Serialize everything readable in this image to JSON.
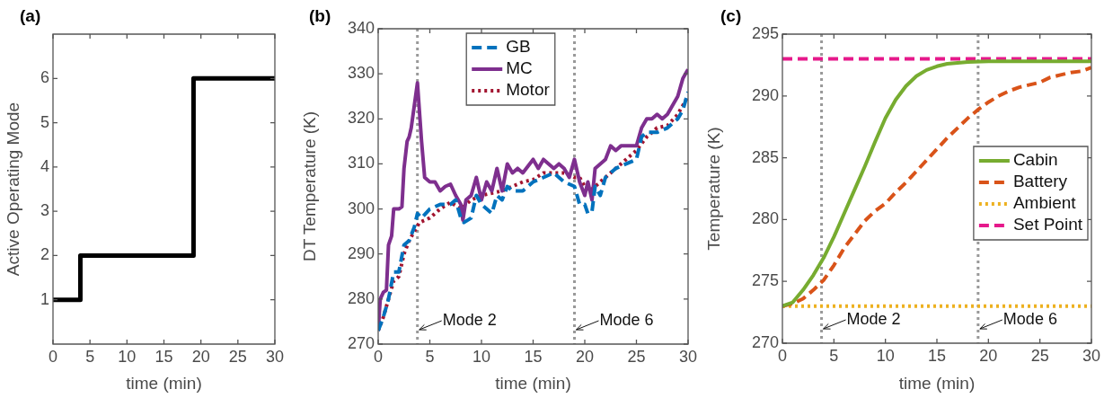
{
  "chart_data": [
    {
      "type": "step",
      "title": "(a)",
      "xlabel": "time (min)",
      "ylabel": "Active Operating Mode",
      "x": [
        0,
        3.7,
        19,
        30
      ],
      "series": [
        {
          "color": "#000000",
          "values": [
            1,
            2,
            6,
            6
          ]
        }
      ],
      "xlim": [
        0,
        30
      ],
      "xticks": [
        0,
        5,
        10,
        15,
        20,
        25,
        30
      ],
      "ylim": [
        0,
        7
      ],
      "yticks": [
        1,
        2,
        3,
        4,
        5,
        6
      ],
      "legend": false,
      "grid": false
    },
    {
      "type": "line",
      "title": "(b)",
      "xlabel": "time (min)",
      "ylabel": "DT Temperature (K)",
      "series": [
        {
          "name": "GB",
          "color": "#0072bd",
          "line_style": "dashed",
          "x": [
            0,
            0.5,
            1,
            1.5,
            2,
            2.5,
            3,
            3.5,
            3.8,
            4.2,
            5,
            6,
            7,
            7.5,
            8,
            8.3,
            9,
            9.5,
            10,
            10.5,
            11,
            11.5,
            12,
            12.5,
            13,
            14,
            15,
            16,
            17,
            17.5,
            18,
            19,
            19.5,
            20,
            20.3,
            20.7,
            21,
            21.5,
            22,
            23,
            24,
            25,
            25.5,
            26,
            27,
            28,
            29,
            29.5,
            30
          ],
          "values": [
            273,
            276,
            280,
            286,
            286,
            292,
            293,
            296,
            299,
            298,
            300,
            301,
            301,
            302,
            298,
            297,
            298,
            303,
            301,
            300,
            299,
            303,
            302,
            305,
            304,
            304,
            306,
            307,
            308,
            307,
            306,
            305,
            301,
            301,
            299,
            299.5,
            305,
            303,
            307,
            309,
            310,
            311,
            316,
            317,
            317,
            318,
            320,
            322,
            326
          ]
        },
        {
          "name": "MC",
          "color": "#7e2f8e",
          "line_style": "solid",
          "x": [
            0,
            0.2,
            0.5,
            0.8,
            1,
            1.3,
            1.5,
            2,
            2.3,
            2.5,
            2.8,
            3,
            3.2,
            3.5,
            3.8,
            4.2,
            4.5,
            5,
            5.5,
            6,
            6.5,
            7,
            7.5,
            8,
            8.2,
            8.5,
            9,
            9.5,
            10,
            10.5,
            11,
            11.5,
            12,
            12.5,
            13,
            13.5,
            14,
            15,
            15.5,
            16,
            17,
            17.5,
            18,
            18.5,
            19,
            19.5,
            20,
            20.3,
            20.7,
            21,
            21.5,
            22,
            22.5,
            23,
            23.5,
            24,
            25,
            25.5,
            26,
            26.5,
            27,
            27.5,
            28,
            28.5,
            29,
            29.5,
            30
          ],
          "values": [
            273,
            280,
            281.5,
            282,
            292,
            294,
            300,
            300,
            300.5,
            309,
            315,
            316,
            318,
            323,
            328,
            315,
            307,
            306,
            306,
            304,
            305,
            305.5,
            303,
            301,
            297.5,
            302,
            303,
            307,
            302,
            306,
            304,
            309,
            304,
            310,
            308,
            309,
            308,
            311,
            309,
            311,
            309,
            310,
            309,
            307,
            311,
            306,
            303,
            306,
            302,
            309,
            310,
            311,
            314,
            313,
            314,
            314,
            314,
            318,
            320,
            320,
            321,
            320,
            321,
            323,
            325,
            329,
            331
          ]
        },
        {
          "name": "Motor",
          "color": "#a2142f",
          "line_style": "dotted",
          "x": [
            0,
            0.5,
            1,
            1.5,
            2,
            2.5,
            3,
            3.5,
            4,
            5,
            6,
            7,
            8,
            8.5,
            9,
            10,
            11,
            12,
            13,
            14,
            15,
            16,
            17,
            18,
            19,
            19.5,
            20,
            20.5,
            21,
            22,
            23,
            24,
            25,
            26,
            27,
            28,
            29,
            30
          ],
          "values": [
            273,
            276,
            280,
            284,
            285,
            290,
            293,
            295,
            297,
            298,
            300,
            301.5,
            300,
            301,
            302,
            303,
            303.5,
            304,
            305,
            306,
            306.5,
            308,
            308,
            308,
            307,
            307,
            305,
            304,
            305,
            307,
            309,
            311,
            313,
            316,
            318,
            318.5,
            321,
            325
          ]
        }
      ],
      "ref_lines": [
        {
          "axis": "x",
          "value": 3.8,
          "label": "Mode 2",
          "color": "#999999",
          "line_style": "dotted"
        },
        {
          "axis": "x",
          "value": 19,
          "label": "Mode 6",
          "color": "#999999",
          "line_style": "dotted"
        }
      ],
      "xlim": [
        0,
        30
      ],
      "xticks": [
        0,
        5,
        10,
        15,
        20,
        25,
        30
      ],
      "ylim": [
        270,
        340
      ],
      "yticks": [
        270,
        280,
        290,
        300,
        310,
        320,
        330,
        340
      ],
      "legend": "top",
      "grid": false
    },
    {
      "type": "line",
      "title": "(c)",
      "xlabel": "time (min)",
      "ylabel": "Temperature (K)",
      "series": [
        {
          "name": "Cabin",
          "color": "#77ac30",
          "line_style": "solid",
          "x": [
            0,
            1,
            2,
            3,
            4,
            5,
            6,
            7,
            8,
            9,
            10,
            11,
            12,
            13,
            14,
            15,
            16,
            18,
            20,
            30
          ],
          "values": [
            273,
            273.3,
            274.3,
            275.5,
            276.9,
            278.6,
            280.5,
            282.4,
            284.3,
            286.3,
            288.2,
            289.7,
            290.8,
            291.6,
            292.1,
            292.4,
            292.6,
            292.75,
            292.8,
            292.8
          ]
        },
        {
          "name": "Battery",
          "color": "#d95319",
          "line_style": "dashed",
          "x": [
            0,
            1,
            2,
            3,
            4,
            5,
            6,
            7,
            8,
            9,
            10,
            11,
            12,
            13,
            14,
            15,
            16,
            17,
            18,
            19,
            20,
            21,
            22,
            23,
            24,
            25,
            26,
            27,
            28,
            29,
            30
          ],
          "values": [
            273,
            273.2,
            273.6,
            274.3,
            275.1,
            276.3,
            277.7,
            278.8,
            279.9,
            280.7,
            281.3,
            282.2,
            283,
            283.9,
            284.8,
            285.7,
            286.6,
            287.4,
            288.2,
            288.9,
            289.5,
            290,
            290.4,
            290.7,
            290.9,
            291.1,
            291.5,
            291.7,
            291.9,
            292,
            292.3
          ]
        },
        {
          "name": "Ambient",
          "color": "#edb120",
          "line_style": "dotted",
          "x": [
            0,
            30
          ],
          "values": [
            273,
            273
          ]
        },
        {
          "name": "Set Point",
          "color": "#e6198b",
          "line_style": "dashed",
          "x": [
            0,
            30
          ],
          "values": [
            293,
            293
          ]
        }
      ],
      "ref_lines": [
        {
          "axis": "x",
          "value": 3.8,
          "label": "Mode 2",
          "color": "#999999",
          "line_style": "dotted"
        },
        {
          "axis": "x",
          "value": 19,
          "label": "Mode 6",
          "color": "#999999",
          "line_style": "dotted"
        }
      ],
      "xlim": [
        0,
        30
      ],
      "xticks": [
        0,
        5,
        10,
        15,
        20,
        25,
        30
      ],
      "ylim": [
        270,
        295
      ],
      "yticks": [
        270,
        275,
        280,
        285,
        290,
        295
      ],
      "legend": "right",
      "grid": false
    }
  ]
}
